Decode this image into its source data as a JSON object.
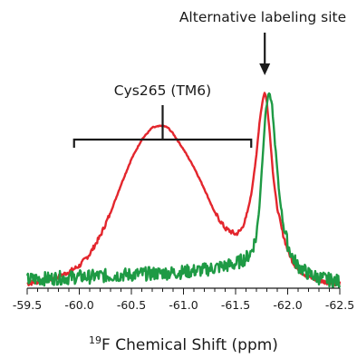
{
  "chart_data": {
    "type": "line",
    "title": "",
    "xlabel_sup": "19",
    "xlabel_main": "F Chemical Shift (ppm)",
    "ylabel": "",
    "x_reversed": true,
    "xlim": [
      -59.5,
      -62.5
    ],
    "ylim": [
      0,
      1
    ],
    "grid": false,
    "x_ticks": [
      {
        "value": -59.5,
        "label": "-59.5"
      },
      {
        "value": -60.0,
        "label": "-60.0"
      },
      {
        "value": -60.5,
        "label": "-60.5"
      },
      {
        "value": -61.0,
        "label": "-61.0"
      },
      {
        "value": -61.5,
        "label": "-61.5"
      },
      {
        "value": -62.0,
        "label": "-62.0"
      },
      {
        "value": -62.5,
        "label": "-62.5"
      }
    ],
    "annotations": [
      {
        "text": "Alternative labeling site",
        "type": "arrow",
        "x": -61.78
      },
      {
        "text": "Cys265 (TM6)",
        "type": "bracket",
        "x_start": -59.95,
        "x_end": -61.65
      }
    ],
    "series": [
      {
        "color": "#e3262d",
        "x": [
          -59.5,
          -59.6,
          -59.7,
          -59.8,
          -59.9,
          -60.0,
          -60.1,
          -60.2,
          -60.3,
          -60.4,
          -60.5,
          -60.6,
          -60.7,
          -60.8,
          -60.85,
          -60.9,
          -61.0,
          -61.1,
          -61.2,
          -61.3,
          -61.4,
          -61.5,
          -61.55,
          -61.6,
          -61.65,
          -61.7,
          -61.73,
          -61.76,
          -61.78,
          -61.8,
          -61.83,
          -61.86,
          -61.9,
          -61.95,
          -62.0,
          -62.05,
          -62.1,
          -62.2,
          -62.3,
          -62.4,
          -62.5
        ],
        "y": [
          0.0,
          0.01,
          0.02,
          0.035,
          0.06,
          0.09,
          0.15,
          0.24,
          0.36,
          0.5,
          0.63,
          0.73,
          0.79,
          0.8,
          0.79,
          0.76,
          0.68,
          0.59,
          0.48,
          0.36,
          0.28,
          0.25,
          0.27,
          0.33,
          0.45,
          0.65,
          0.82,
          0.93,
          0.97,
          0.92,
          0.75,
          0.55,
          0.38,
          0.26,
          0.17,
          0.11,
          0.07,
          0.035,
          0.015,
          0.005,
          0.0
        ]
      },
      {
        "color": "#1e9a44",
        "x": [
          -59.5,
          -59.6,
          -59.7,
          -59.8,
          -59.9,
          -60.0,
          -60.1,
          -60.2,
          -60.3,
          -60.4,
          -60.5,
          -60.6,
          -60.7,
          -60.8,
          -60.9,
          -61.0,
          -61.1,
          -61.2,
          -61.3,
          -61.4,
          -61.5,
          -61.6,
          -61.65,
          -61.7,
          -61.73,
          -61.76,
          -61.79,
          -61.82,
          -61.85,
          -61.88,
          -61.92,
          -61.96,
          -62.0,
          -62.05,
          -62.1,
          -62.2,
          -62.3,
          -62.4,
          -62.5
        ],
        "y": [
          0.02,
          0.025,
          0.025,
          0.03,
          0.03,
          0.035,
          0.035,
          0.04,
          0.04,
          0.045,
          0.045,
          0.05,
          0.05,
          0.055,
          0.055,
          0.06,
          0.065,
          0.07,
          0.08,
          0.09,
          0.1,
          0.13,
          0.16,
          0.24,
          0.4,
          0.65,
          0.88,
          0.97,
          0.9,
          0.7,
          0.45,
          0.3,
          0.2,
          0.13,
          0.09,
          0.05,
          0.03,
          0.02,
          0.01
        ]
      }
    ]
  }
}
